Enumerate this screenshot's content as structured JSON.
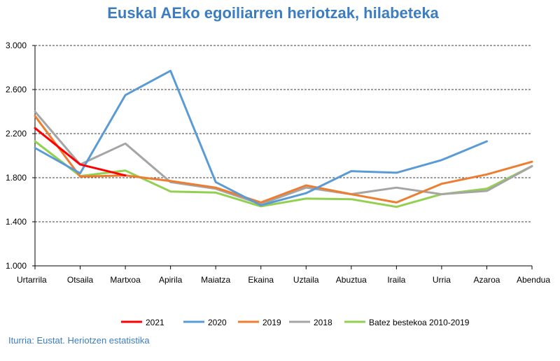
{
  "chart_data": {
    "type": "line",
    "title": "Euskal AEko egoiliarren heriotzak, hilabeteka",
    "xlabel": "",
    "ylabel": "",
    "ylim": [
      1000,
      3000
    ],
    "yticks": [
      1000,
      1400,
      1800,
      2200,
      2600,
      3000
    ],
    "ytick_labels": [
      "1.000",
      "1.400",
      "1.800",
      "2.200",
      "2.600",
      "3.000"
    ],
    "grid": "horizontal dashed",
    "legend_position": "bottom",
    "categories": [
      "Urtarrila",
      "Otsaila",
      "Martxoa",
      "Apirila",
      "Maiatza",
      "Ekaina",
      "Uztaila",
      "Abuztua",
      "Iraila",
      "Urria",
      "Azaroa",
      "Abendua"
    ],
    "series": [
      {
        "name": "2021",
        "color": "#ff0000",
        "values": [
          2250,
          1920,
          1820,
          null,
          null,
          null,
          null,
          null,
          null,
          null,
          null,
          null
        ]
      },
      {
        "name": "2020",
        "color": "#5b9bd5",
        "values": [
          2070,
          1840,
          2550,
          2770,
          1760,
          1550,
          1660,
          1860,
          1845,
          1960,
          2130,
          null
        ]
      },
      {
        "name": "2019",
        "color": "#ed7d31",
        "values": [
          2360,
          1810,
          1820,
          1770,
          1710,
          1575,
          1730,
          1650,
          1575,
          1745,
          1830,
          1945
        ]
      },
      {
        "name": "2018",
        "color": "#a5a5a5",
        "values": [
          2400,
          1920,
          2110,
          1760,
          1700,
          1560,
          1710,
          1650,
          1710,
          1650,
          1680,
          1905
        ]
      },
      {
        "name": "Batez bestekoa 2010-2019",
        "color": "#92d050",
        "values": [
          2130,
          1815,
          1865,
          1675,
          1665,
          1540,
          1610,
          1605,
          1535,
          1650,
          1700,
          1905
        ]
      }
    ]
  },
  "source": "Iturria: Eustat. Heriotzen estatistika"
}
